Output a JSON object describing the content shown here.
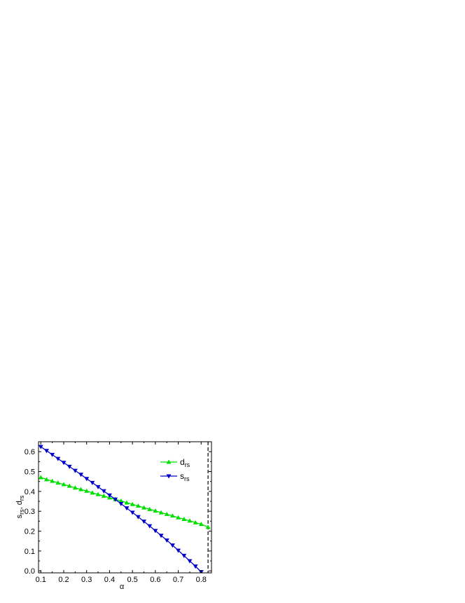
{
  "chart_data": {
    "type": "line",
    "xlabel": "α",
    "ylabel": {
      "main_1": "s",
      "sub_1": "rs",
      "sep": ", ",
      "main_2": "d",
      "sub_2": "rs"
    },
    "xlim": [
      0.09,
      0.845
    ],
    "ylim": [
      -0.01,
      0.65
    ],
    "xticks": [
      0.1,
      0.2,
      0.3,
      0.4,
      0.5,
      0.6,
      0.7,
      0.8
    ],
    "yticks": [
      0.0,
      0.1,
      0.2,
      0.3,
      0.4,
      0.5,
      0.6
    ],
    "xtick_labels": [
      "0.1",
      "0.2",
      "0.3",
      "0.4",
      "0.5",
      "0.6",
      "0.7",
      "0.8"
    ],
    "ytick_labels": [
      "0.0",
      "0.1",
      "0.2",
      "0.3",
      "0.4",
      "0.5",
      "0.6"
    ],
    "reference_line": {
      "x": 0.83,
      "style": "dashed"
    },
    "legend_position": "top-right",
    "grid": false,
    "series": [
      {
        "name": "d",
        "name_sub": "rs",
        "color": "#00e000",
        "marker": "triangle-up",
        "x": [
          0.1,
          0.125,
          0.15,
          0.175,
          0.2,
          0.225,
          0.25,
          0.275,
          0.3,
          0.325,
          0.35,
          0.375,
          0.4,
          0.425,
          0.45,
          0.475,
          0.5,
          0.525,
          0.55,
          0.575,
          0.6,
          0.625,
          0.65,
          0.675,
          0.7,
          0.725,
          0.75,
          0.775,
          0.8,
          0.83
        ],
        "values": [
          0.47,
          0.46,
          0.452,
          0.443,
          0.435,
          0.427,
          0.418,
          0.41,
          0.402,
          0.393,
          0.385,
          0.377,
          0.368,
          0.36,
          0.352,
          0.343,
          0.335,
          0.327,
          0.318,
          0.31,
          0.302,
          0.293,
          0.285,
          0.277,
          0.268,
          0.26,
          0.252,
          0.243,
          0.235,
          0.22
        ]
      },
      {
        "name": "s",
        "name_sub": "rs",
        "color": "#0000cc",
        "marker": "triangle-down",
        "x": [
          0.1,
          0.125,
          0.15,
          0.175,
          0.2,
          0.225,
          0.25,
          0.275,
          0.3,
          0.325,
          0.35,
          0.375,
          0.4,
          0.425,
          0.45,
          0.475,
          0.5,
          0.525,
          0.55,
          0.575,
          0.6,
          0.625,
          0.65,
          0.675,
          0.7,
          0.725,
          0.75,
          0.775,
          0.8,
          0.815,
          0.83
        ],
        "values": [
          0.625,
          0.605,
          0.585,
          0.565,
          0.545,
          0.525,
          0.505,
          0.485,
          0.464,
          0.444,
          0.423,
          0.402,
          0.381,
          0.36,
          0.338,
          0.316,
          0.294,
          0.272,
          0.249,
          0.226,
          0.202,
          0.178,
          0.154,
          0.129,
          0.103,
          0.077,
          0.05,
          0.023,
          -0.005,
          -0.02,
          -0.035
        ]
      }
    ]
  }
}
